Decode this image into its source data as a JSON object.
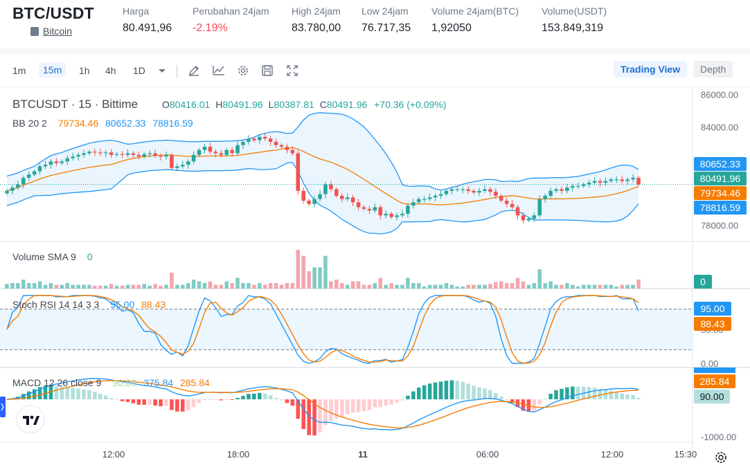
{
  "ticker": {
    "pair": "BTC/USDT",
    "coin_name": "Bitcoin",
    "stats": [
      {
        "label": "Harga",
        "value": "80.491,96"
      },
      {
        "label": "Perubahan 24jam",
        "value": "-2.19%",
        "negative": true
      },
      {
        "label": "High 24jam",
        "value": "83.780,00"
      },
      {
        "label": "Low 24jam",
        "value": "76.717,35"
      },
      {
        "label": "Volume 24jam(BTC)",
        "value": "1,92050"
      },
      {
        "label": "Volume(USDT)",
        "value": "153.849,319"
      }
    ]
  },
  "toolbar": {
    "timeframes": [
      "1m",
      "15m",
      "1h",
      "4h",
      "1D"
    ],
    "active_timeframe": "15m",
    "icons": [
      "chevron-down-icon",
      "draw-pen-icon",
      "indicator-icon",
      "settings-gear-icon",
      "save-icon",
      "fullscreen-icon"
    ],
    "view_buttons": [
      "Trading View",
      "Depth"
    ],
    "active_view": "Trading View"
  },
  "colors": {
    "up": "#26a69a",
    "down": "#ef5350",
    "bb_basis": "#f57c00",
    "bb_band": "#2196f3",
    "bb_fill": "#e3f2fd",
    "stoch_k": "#2196f3",
    "stoch_d": "#f57c00",
    "macd_line": "#2196f3",
    "signal_line": "#f57c00"
  },
  "chart_data": [
    {
      "type": "candlestick",
      "title": "BTCUSDT · 15 · Bittime",
      "ohlc_legend": {
        "O_label": "O",
        "O": "80416.01",
        "H_label": "H",
        "H": "80491.96",
        "L_label": "L",
        "L": "80387.81",
        "C_label": "C",
        "C": "80491.96",
        "change": "+70.36 (+0.09%)"
      },
      "indicator": "BB 20 2",
      "indicator_values": {
        "basis": "79734.46",
        "upper": "80652.33",
        "lower": "78816.59"
      },
      "y_ticks": [
        "86000.00",
        "84000.00",
        "82000.00",
        "80000.00",
        "78000.00"
      ],
      "ylim": [
        77000,
        86400
      ],
      "price_tags": {
        "upper": "80652.33",
        "last": "80491.96",
        "basis": "79734.46",
        "lower": "78816.59"
      },
      "close_series_approx": [
        80100,
        80300,
        80500,
        80900,
        81100,
        81300,
        81600,
        81700,
        81900,
        81800,
        81900,
        82100,
        82200,
        82300,
        82400,
        82500,
        82450,
        82400,
        82450,
        82300,
        82350,
        82300,
        82400,
        82300,
        82200,
        82350,
        82400,
        82250,
        82200,
        82300,
        81500,
        81600,
        81700,
        81900,
        82300,
        82600,
        82800,
        82500,
        82400,
        82300,
        82600,
        82400,
        82900,
        83100,
        83300,
        83200,
        83400,
        83300,
        83100,
        82900,
        82800,
        82600,
        82400,
        80100,
        79500,
        79300,
        79600,
        79900,
        80500,
        80200,
        79800,
        79600,
        79700,
        79400,
        79100,
        79000,
        78900,
        79100,
        78600,
        78700,
        78500,
        78600,
        78700,
        79200,
        79400,
        79600,
        79600,
        79700,
        79800,
        79900,
        80100,
        80200,
        80200,
        80200,
        80100,
        80000,
        80100,
        80200,
        80050,
        79800,
        79500,
        79300,
        79100,
        78600,
        78300,
        78400,
        78600,
        79600,
        79800,
        80100,
        80200,
        80100,
        80300,
        80400,
        80400,
        80500,
        80600,
        80700,
        80600,
        80700,
        80800,
        80800,
        80700,
        80800,
        80900,
        80491.96
      ]
    },
    {
      "type": "bar",
      "title": "Volume SMA 9",
      "value_label": "0",
      "price_tag": "0"
    },
    {
      "type": "line",
      "title": "Stoch RSI 14 14 3 3",
      "series": [
        {
          "name": "K",
          "current": "95.00"
        },
        {
          "name": "D",
          "current": "88.43"
        }
      ],
      "y_ticks": [
        "50.00",
        "0.00"
      ],
      "ylim": [
        0,
        100
      ],
      "band": [
        20,
        80
      ]
    },
    {
      "type": "line",
      "title": "MACD 12 26 close 9",
      "series": [
        {
          "name": "Histogram",
          "current": "90.00"
        },
        {
          "name": "MACD",
          "current": "375.84"
        },
        {
          "name": "Signal",
          "current": "285.84"
        }
      ],
      "y_ticks": [
        "-1000.00"
      ],
      "x_ticks": [
        "12:00",
        "18:00",
        "11",
        "06:00",
        "12:00",
        "15:30"
      ]
    }
  ]
}
